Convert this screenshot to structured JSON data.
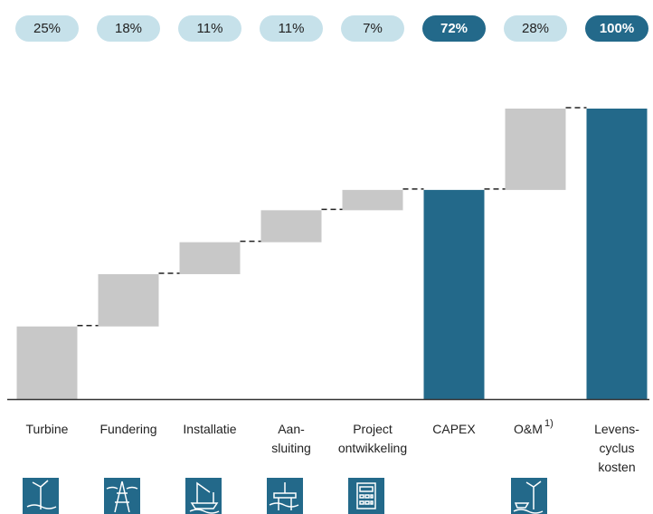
{
  "chart_data": {
    "type": "waterfall",
    "categories": [
      "Turbine",
      "Fundering",
      "Installatie",
      "Aan-\nsluiting",
      "Project\nontwikkeling",
      "CAPEX",
      "O&M",
      "Levens-\ncyclus\nkosten"
    ],
    "superscripts": [
      null,
      null,
      null,
      null,
      null,
      null,
      "1)",
      null
    ],
    "values": [
      25,
      18,
      11,
      11,
      7,
      72,
      28,
      100
    ],
    "value_labels": [
      "25%",
      "18%",
      "11%",
      "11%",
      "7%",
      "72%",
      "28%",
      "100%"
    ],
    "totals": [
      false,
      false,
      false,
      false,
      false,
      true,
      false,
      true
    ],
    "color": "#c8c8c8",
    "total_color": "#23698a",
    "pill_color": "#c6e1ea"
  }
}
